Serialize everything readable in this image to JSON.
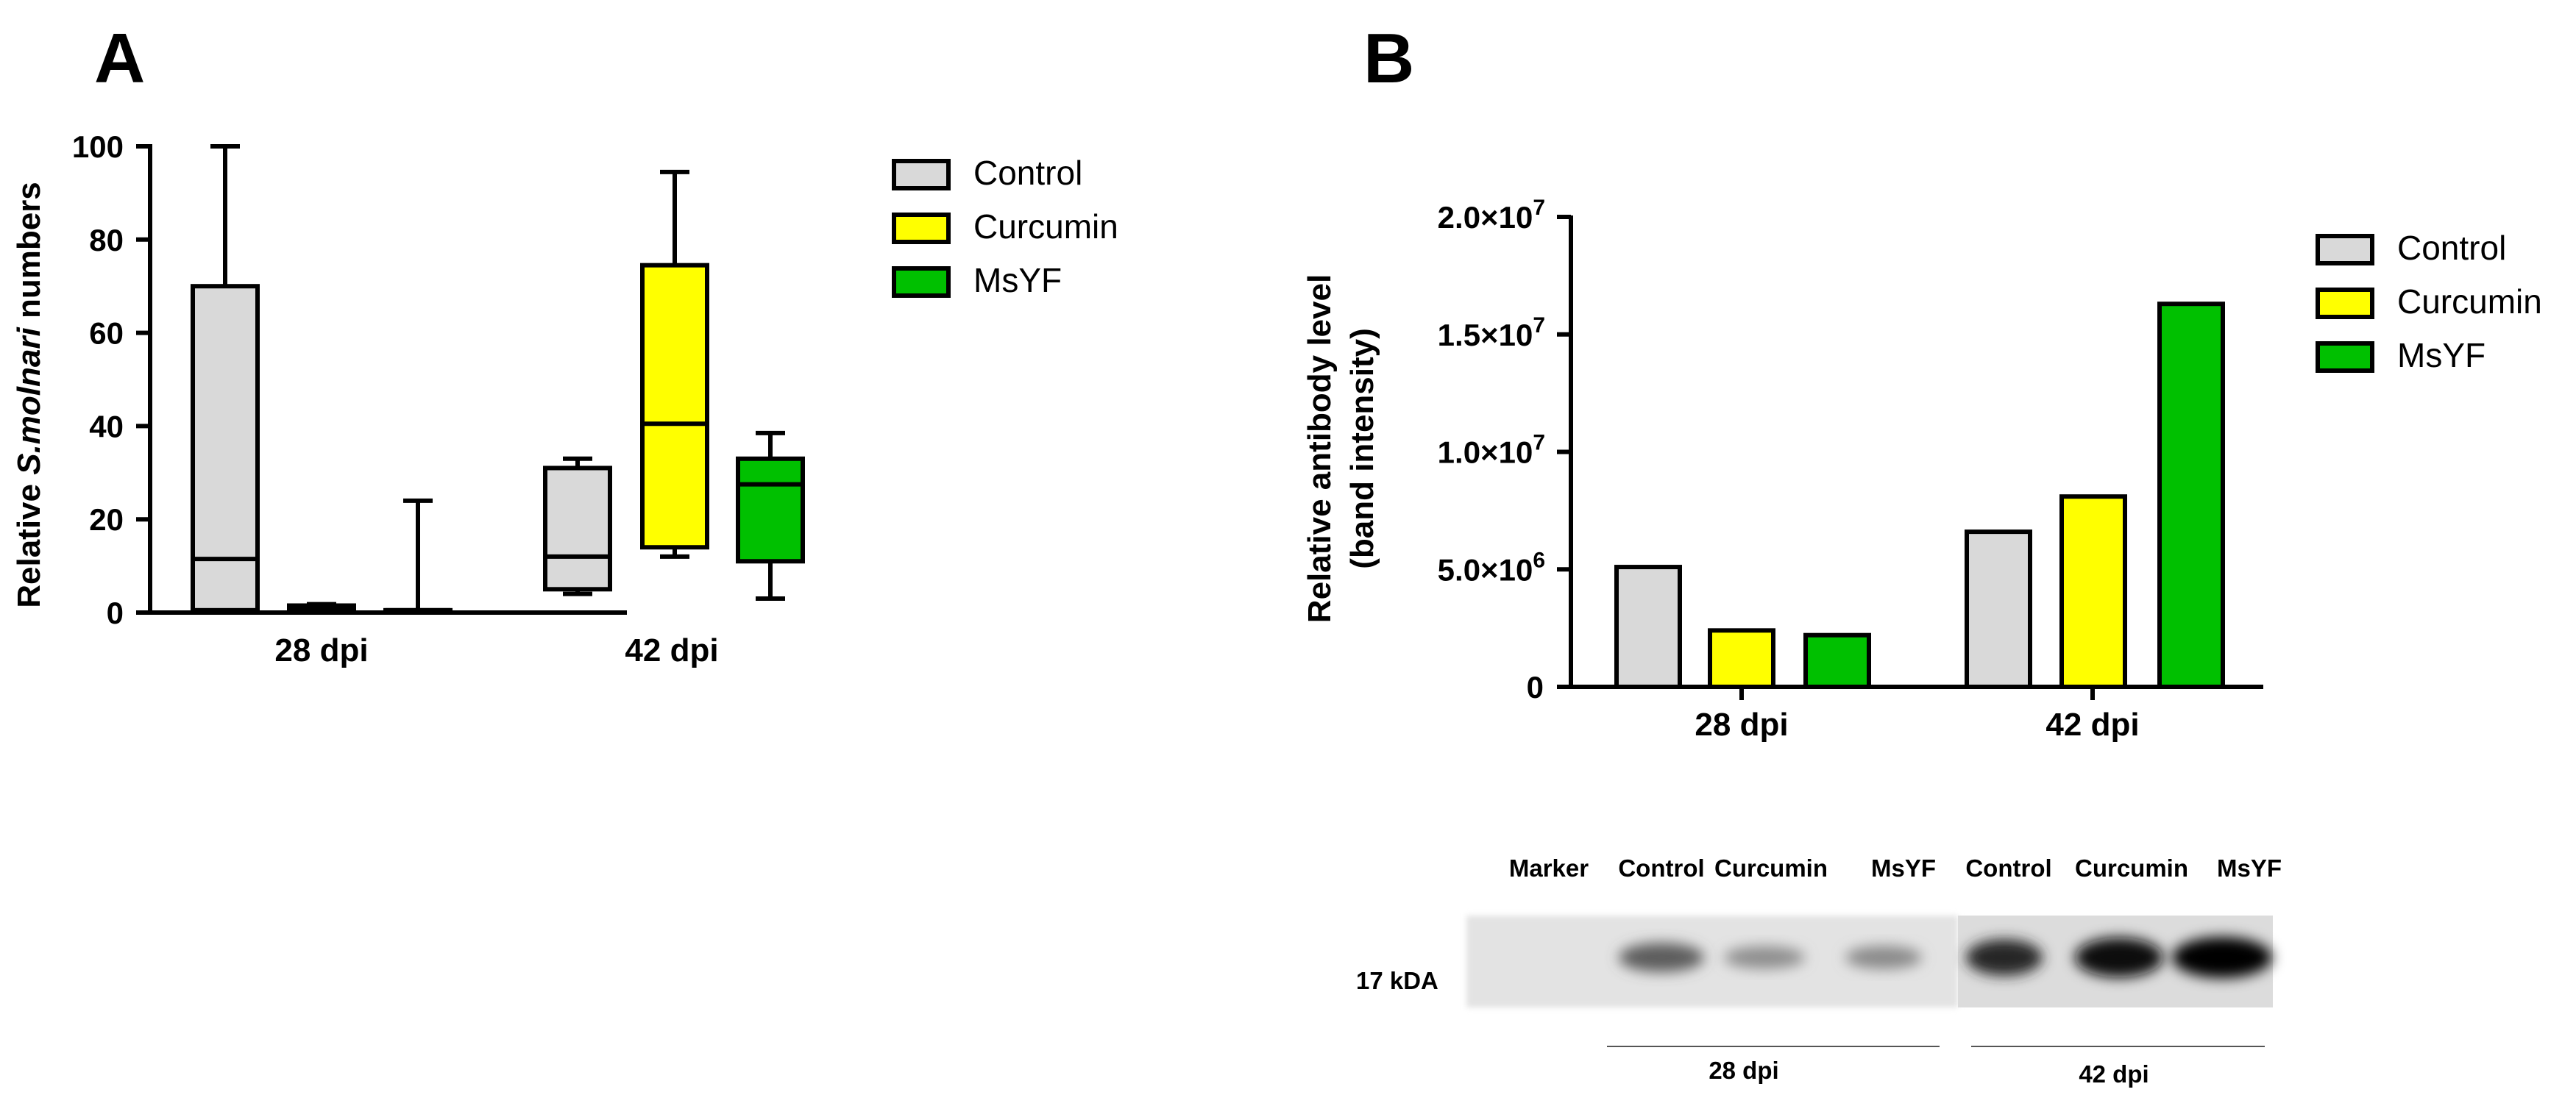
{
  "panels": {
    "a": {
      "letter": "A"
    },
    "b": {
      "letter": "B"
    }
  },
  "colors": {
    "control": "#d9d9d9",
    "curcumin": "#ffff00",
    "msyf": "#00c000",
    "stroke": "#000000"
  },
  "chart_data": [
    {
      "type": "box",
      "panel": "A",
      "ylabel_prefix": "Relative ",
      "ylabel_italic": "S.molnari",
      "ylabel_suffix": " numbers",
      "ylim": [
        0,
        100
      ],
      "yticks": [
        0,
        20,
        40,
        60,
        80,
        100
      ],
      "categories": [
        "28 dpi",
        "42 dpi"
      ],
      "legend": [
        "Control",
        "Curcumin",
        "MsYF"
      ],
      "series": [
        {
          "name": "Control",
          "color": "#d9d9d9",
          "boxes": [
            {
              "category": "28 dpi",
              "min": 0.5,
              "q1": 0.5,
              "median": 11.5,
              "q3": 70,
              "max": 100
            },
            {
              "category": "42 dpi",
              "min": 4,
              "q1": 5,
              "median": 12,
              "q3": 31,
              "max": 33
            }
          ]
        },
        {
          "name": "Curcumin",
          "color": "#ffff00",
          "boxes": [
            {
              "category": "28 dpi",
              "min": 0.5,
              "q1": 0.5,
              "median": 1,
              "q3": 1.5,
              "max": 1.8
            },
            {
              "category": "42 dpi",
              "min": 12,
              "q1": 14,
              "median": 40.5,
              "q3": 74.5,
              "max": 94.5
            }
          ]
        },
        {
          "name": "MsYF",
          "color": "#00c000",
          "boxes": [
            {
              "category": "28 dpi",
              "min": 0,
              "q1": 0,
              "median": 0.5,
              "q3": 0.5,
              "max": 24
            },
            {
              "category": "42 dpi",
              "min": 3,
              "q1": 11,
              "median": 27.5,
              "q3": 33,
              "max": 38.5
            }
          ]
        }
      ]
    },
    {
      "type": "bar",
      "panel": "B",
      "ylabel_line1": "Relative antibody level",
      "ylabel_line2": "(band intensity)",
      "ylim": [
        0,
        20000000
      ],
      "yticks": [
        {
          "value": 0,
          "mant": "0",
          "exp": ""
        },
        {
          "value": 5000000,
          "mant": "5.0×10",
          "exp": "6"
        },
        {
          "value": 10000000,
          "mant": "1.0×10",
          "exp": "7"
        },
        {
          "value": 15000000,
          "mant": "1.5×10",
          "exp": "7"
        },
        {
          "value": 20000000,
          "mant": "2.0×10",
          "exp": "7"
        }
      ],
      "categories": [
        "28 dpi",
        "42 dpi"
      ],
      "legend": [
        "Control",
        "Curcumin",
        "MsYF"
      ],
      "series": [
        {
          "name": "Control",
          "color": "#d9d9d9",
          "values": [
            5100000,
            6600000
          ]
        },
        {
          "name": "Curcumin",
          "color": "#ffff00",
          "values": [
            2400000,
            8100000
          ]
        },
        {
          "name": "MsYF",
          "color": "#00c000",
          "values": [
            2200000,
            16300000
          ]
        }
      ]
    }
  ],
  "blot": {
    "lane_labels": [
      "Marker",
      "Control",
      "Curcumin",
      "MsYF",
      "Control",
      "Curcumin",
      "MsYF"
    ],
    "marker_label": "17 kDA",
    "group_labels": [
      "28 dpi",
      "42 dpi"
    ],
    "band_intensity": [
      0.0,
      0.55,
      0.3,
      0.32,
      0.82,
      0.95,
      1.0
    ]
  }
}
